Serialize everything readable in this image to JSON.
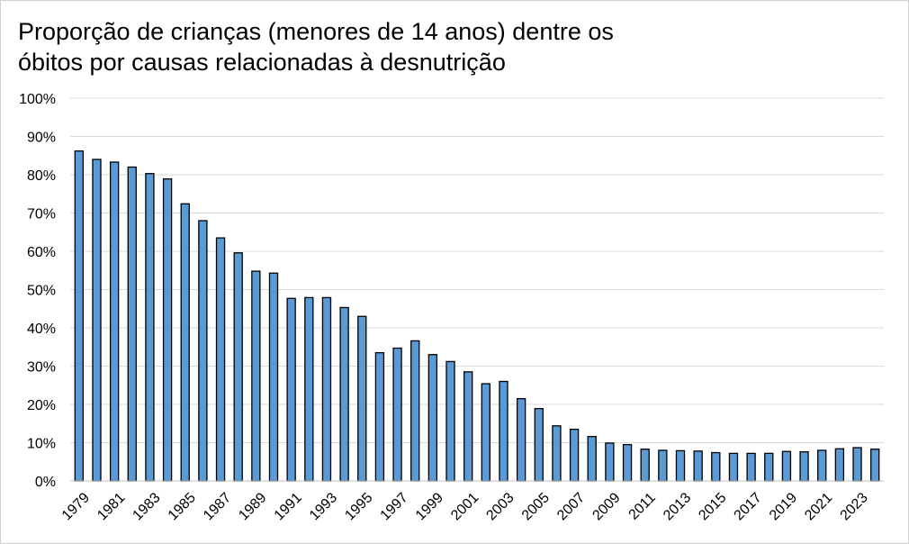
{
  "chart_data": {
    "type": "bar",
    "title_lines": [
      "Proporção de crianças (menores de 14 anos) dentre os",
      "óbitos por causas relacionadas à desnutrição"
    ],
    "xlabel": "",
    "ylabel": "",
    "ylim": [
      0,
      100
    ],
    "y_ticks": [
      "0%",
      "10%",
      "20%",
      "30%",
      "40%",
      "50%",
      "60%",
      "70%",
      "80%",
      "90%",
      "100%"
    ],
    "y_tick_values": [
      0,
      10,
      20,
      30,
      40,
      50,
      60,
      70,
      80,
      90,
      100
    ],
    "grid": true,
    "legend": "none",
    "bar_color": "#5b9bd5",
    "bar_edge_color": "#000000",
    "categories": [
      "1979",
      "1980",
      "1981",
      "1982",
      "1983",
      "1984",
      "1985",
      "1986",
      "1987",
      "1988",
      "1989",
      "1990",
      "1991",
      "1992",
      "1993",
      "1994",
      "1995",
      "1996",
      "1997",
      "1998",
      "1999",
      "2000",
      "2001",
      "2002",
      "2003",
      "2004",
      "2005",
      "2006",
      "2007",
      "2008",
      "2009",
      "2010",
      "2011",
      "2012",
      "2013",
      "2014",
      "2015",
      "2016",
      "2017",
      "2018",
      "2019",
      "2020",
      "2021",
      "2022",
      "2023",
      "2024"
    ],
    "x_tick_labels": [
      "1979",
      "",
      "1981",
      "",
      "1983",
      "",
      "1985",
      "",
      "1987",
      "",
      "1989",
      "",
      "1991",
      "",
      "1993",
      "",
      "1995",
      "",
      "1997",
      "",
      "1999",
      "",
      "2001",
      "",
      "2003",
      "",
      "2005",
      "",
      "2007",
      "",
      "2009",
      "",
      "2011",
      "",
      "2013",
      "",
      "2015",
      "",
      "2017",
      "",
      "2019",
      "",
      "2021",
      "",
      "2023",
      ""
    ],
    "values": [
      86.2,
      84.0,
      83.3,
      82.0,
      80.3,
      78.9,
      72.4,
      68.0,
      63.5,
      59.6,
      54.8,
      54.3,
      47.7,
      47.9,
      47.9,
      45.3,
      43.0,
      33.5,
      34.7,
      36.6,
      33.0,
      31.2,
      28.5,
      25.4,
      26.0,
      21.5,
      18.9,
      14.4,
      13.5,
      11.6,
      9.9,
      9.5,
      8.3,
      8.0,
      7.9,
      7.8,
      7.4,
      7.2,
      7.2,
      7.2,
      7.7,
      7.6,
      8.0,
      8.4,
      8.7,
      8.3
    ]
  }
}
